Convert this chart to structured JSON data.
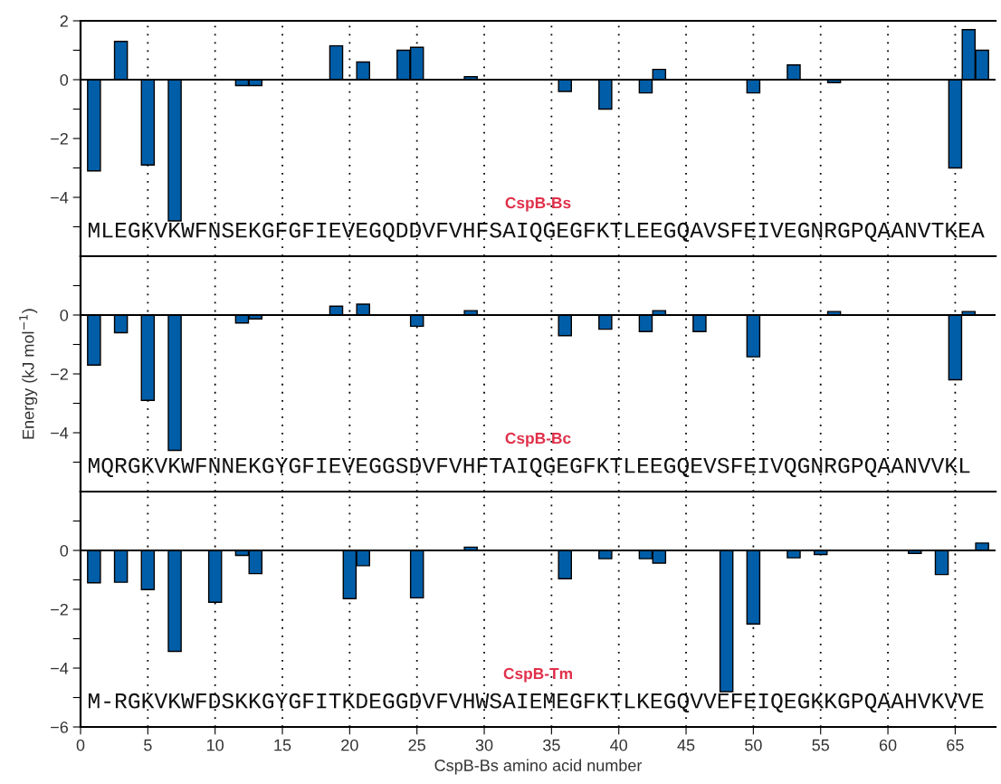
{
  "chart_data": [
    {
      "type": "bar",
      "title": "CspB-Bs",
      "annotations": [
        "MLEGKVKWFNSEKGFGFIEVEGQDDVFVHFSAIQGEGFKTLEEGQAVSFEIVEGNRGPQAANVTKEA"
      ],
      "color": "#005ea8",
      "x": [
        1,
        3,
        5,
        7,
        12,
        13,
        19,
        21,
        24,
        25,
        29,
        36,
        39,
        42,
        43,
        50,
        53,
        56,
        65,
        66,
        67
      ],
      "values": [
        -3.1,
        1.3,
        -2.9,
        -4.8,
        -0.2,
        -0.2,
        1.15,
        0.6,
        1.0,
        1.1,
        0.1,
        -0.4,
        -1.0,
        -0.45,
        0.35,
        -0.45,
        0.5,
        -0.1,
        -3.0,
        1.7,
        1.0
      ],
      "xlim": [
        0,
        68
      ],
      "xticks": [
        0,
        5,
        10,
        15,
        20,
        25,
        30,
        35,
        40,
        45,
        50,
        55,
        60,
        65
      ],
      "ylim": [
        -6,
        2
      ],
      "yticks": [
        {
          "value": -5,
          "label": null
        },
        -4,
        {
          "value": -3,
          "label": null
        },
        -2,
        {
          "value": -1,
          "label": null
        },
        0,
        {
          "value": 1,
          "label": null
        },
        2
      ],
      "grid": "x",
      "tick_labels": "y"
    },
    {
      "type": "bar",
      "title": "CspB-Bc",
      "ylabel": "Energy (kJ mol$^{−1}$)",
      "annotations": [
        "MQRGKVKWFNNEKGYGFIEVEGGSDVFVHFTAIQGEGFKTLEEGQEVSFEIVQGNRGPQAANVVKL"
      ],
      "color": "#005ea8",
      "x": [
        1,
        3,
        5,
        7,
        12,
        13,
        19,
        21,
        25,
        29,
        36,
        39,
        42,
        43,
        46,
        50,
        56,
        65,
        66
      ],
      "values": [
        -1.7,
        -0.6,
        -2.9,
        -4.6,
        -0.27,
        -0.13,
        0.3,
        0.37,
        -0.38,
        0.15,
        -0.7,
        -0.48,
        -0.56,
        0.15,
        -0.56,
        -1.42,
        0.12,
        -2.2,
        0.12
      ],
      "xlim": [
        0,
        68
      ],
      "xticks": [
        0,
        5,
        10,
        15,
        20,
        25,
        30,
        35,
        40,
        45,
        50,
        55,
        60,
        65
      ],
      "ylim": [
        -6,
        2
      ],
      "yticks": [
        {
          "value": -5,
          "label": null
        },
        -4,
        {
          "value": -3,
          "label": null
        },
        -2,
        {
          "value": -1,
          "label": null
        },
        0,
        {
          "value": 1,
          "label": null
        }
      ],
      "grid": "x",
      "tick_labels": "y"
    },
    {
      "type": "bar",
      "title": "CspB-Tm",
      "xlabel": "CspB-Bs amino acid number",
      "annotations": [
        "M-RGKVKWFDSKKGYGFITKDEGGDVFVHWSAIEMEGFKTLKEGQVVEFEIQEGKKGPQAAHVKVVE"
      ],
      "color": "#005ea8",
      "x": [
        1,
        3,
        5,
        7,
        10,
        12,
        13,
        20,
        21,
        25,
        29,
        36,
        39,
        42,
        43,
        48,
        50,
        53,
        55,
        62,
        64,
        67
      ],
      "values": [
        -1.1,
        -1.08,
        -1.33,
        -3.43,
        -1.76,
        -0.17,
        -0.79,
        -1.64,
        -0.52,
        -1.61,
        0.11,
        -0.96,
        -0.28,
        -0.28,
        -0.43,
        -4.8,
        -2.5,
        -0.25,
        -0.14,
        -0.1,
        -0.82,
        0.25
      ],
      "xlim": [
        0,
        68
      ],
      "xticks": [
        0,
        5,
        10,
        15,
        20,
        25,
        30,
        35,
        40,
        45,
        50,
        55,
        60,
        65
      ],
      "ylim": [
        -6,
        2
      ],
      "yticks": [
        -6,
        {
          "value": -5,
          "label": null
        },
        -4,
        {
          "value": -3,
          "label": null
        },
        -2,
        {
          "value": -1,
          "label": null
        },
        0,
        {
          "value": 1,
          "label": null
        }
      ],
      "grid": "x"
    }
  ]
}
